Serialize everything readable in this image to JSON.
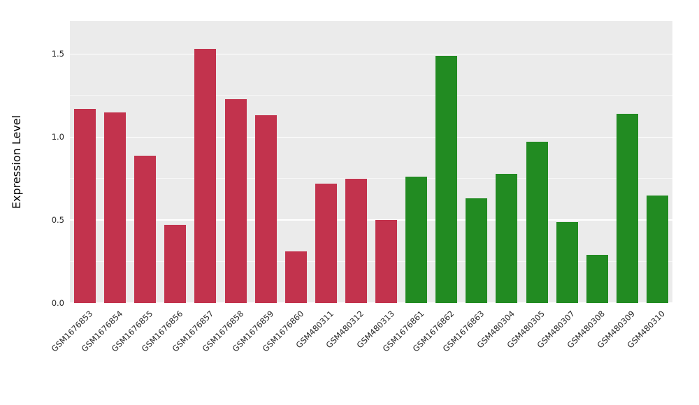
{
  "figure": {
    "background": "#ffffff",
    "panel_background": "#ebebeb",
    "grid_color": "#ffffff"
  },
  "chart_data": {
    "type": "bar",
    "title": "",
    "xlabel": "",
    "ylabel": "Expression Level",
    "ylim": [
      0,
      1.7
    ],
    "ytick_values": [
      0.0,
      0.5,
      1.0,
      1.5
    ],
    "ytick_labels": [
      "0.0",
      "0.5",
      "1.0",
      "1.5"
    ],
    "minor_tick_values": [
      0.25,
      0.75,
      1.25
    ],
    "grid": true,
    "legend": "none",
    "categories": [
      "GSM1676853",
      "GSM1676854",
      "GSM1676855",
      "GSM1676856",
      "GSM1676857",
      "GSM1676858",
      "GSM1676859",
      "GSM1676860",
      "GSM480311",
      "GSM480312",
      "GSM480313",
      "GSM1676861",
      "GSM1676862",
      "GSM1676863",
      "GSM480304",
      "GSM480305",
      "GSM480307",
      "GSM480308",
      "GSM480309",
      "GSM480310"
    ],
    "values": [
      1.17,
      1.15,
      0.89,
      0.47,
      1.53,
      1.23,
      1.13,
      0.31,
      0.72,
      0.75,
      0.5,
      0.76,
      1.49,
      0.63,
      0.78,
      0.97,
      0.49,
      0.29,
      1.14,
      0.65
    ],
    "group_colors": {
      "group1": "#c2334d",
      "group2": "#228b22"
    },
    "colors": [
      "#c2334d",
      "#c2334d",
      "#c2334d",
      "#c2334d",
      "#c2334d",
      "#c2334d",
      "#c2334d",
      "#c2334d",
      "#c2334d",
      "#c2334d",
      "#c2334d",
      "#228b22",
      "#228b22",
      "#228b22",
      "#228b22",
      "#228b22",
      "#228b22",
      "#228b22",
      "#228b22",
      "#228b22"
    ]
  }
}
